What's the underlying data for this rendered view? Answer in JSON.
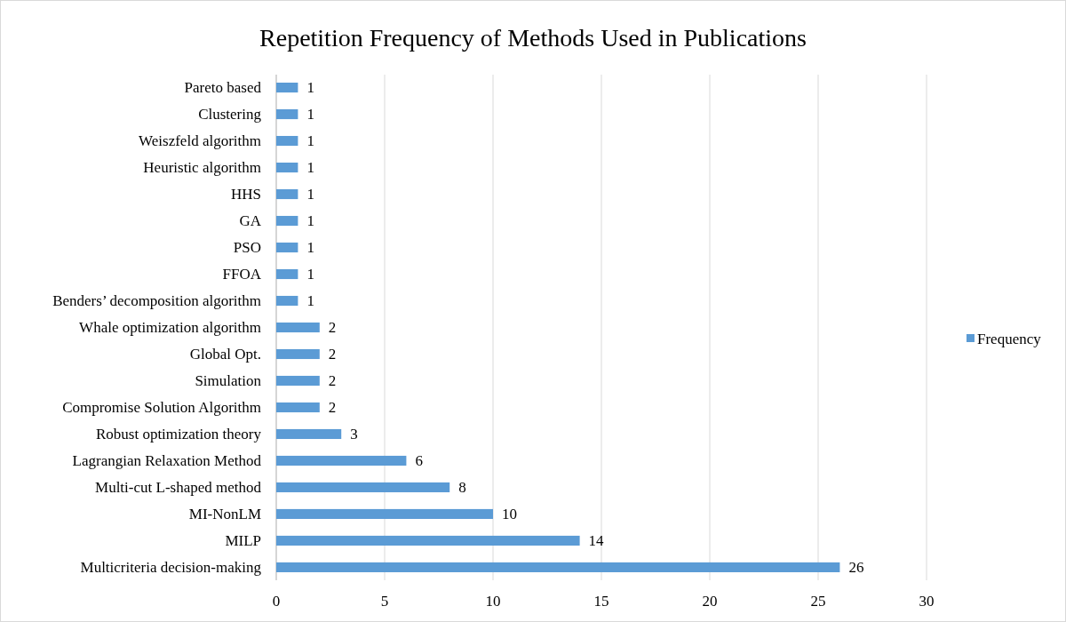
{
  "chart_data": {
    "type": "bar",
    "orientation": "horizontal",
    "title": "Repetition Frequency of Methods Used in Publications",
    "categories": [
      "Pareto based",
      "Clustering",
      "Weiszfeld algorithm",
      "Heuristic algorithm",
      "HHS",
      "GA",
      "PSO",
      "FFOA",
      "Benders’ decomposition algorithm",
      "Whale optimization algorithm",
      "Global Opt.",
      "Simulation",
      "Compromise Solution Algorithm",
      "Robust optimization theory",
      "Lagrangian Relaxation Method",
      "Multi-cut L-shaped method",
      "MI-NonLM",
      "MILP",
      "Multicriteria decision-making"
    ],
    "series": [
      {
        "name": "Frequency",
        "color": "#5b9bd5",
        "values": [
          1,
          1,
          1,
          1,
          1,
          1,
          1,
          1,
          1,
          2,
          2,
          2,
          2,
          3,
          6,
          8,
          10,
          14,
          26
        ]
      }
    ],
    "xlim": [
      0,
      30
    ],
    "xticks": [
      0,
      5,
      10,
      15,
      20,
      25,
      30
    ],
    "grid": "x",
    "legend": "right",
    "data_labels": true
  }
}
